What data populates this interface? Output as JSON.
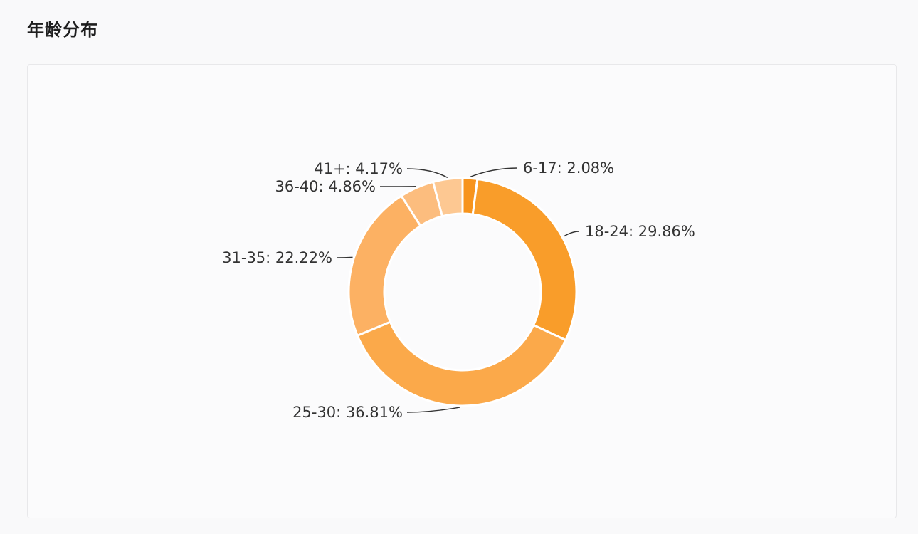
{
  "section": {
    "title": "年龄分布"
  },
  "chart_data": {
    "type": "pie",
    "variant": "donut",
    "categories": [
      "6-17",
      "18-24",
      "25-30",
      "31-35",
      "36-40",
      "41+"
    ],
    "values": [
      2.08,
      29.86,
      36.81,
      22.22,
      4.86,
      4.17
    ],
    "labels": [
      "6-17: 2.08%",
      "18-24: 29.86%",
      "25-30: 36.81%",
      "31-35: 22.22%",
      "36-40: 4.86%",
      "41+: 4.17%"
    ],
    "colors": [
      "#f7941d",
      "#f99d2a",
      "#fba94a",
      "#fcb163",
      "#fcbd7e",
      "#fdc892"
    ],
    "legend": "none",
    "start": "top, clockwise"
  }
}
